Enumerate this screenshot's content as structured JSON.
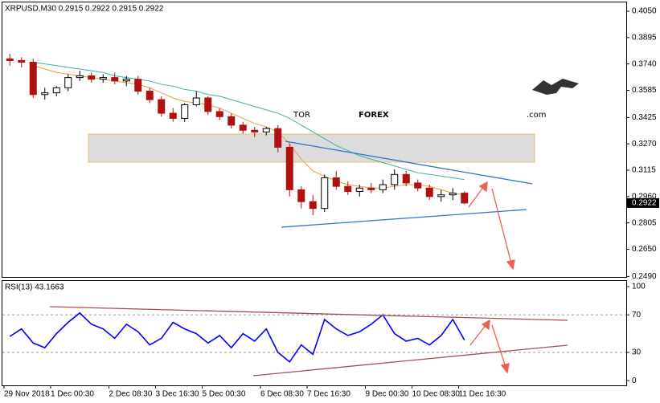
{
  "chart_data": [
    {
      "type": "candlestick",
      "title": "XRPUSD,M30 0.2915 0.2922 0.2915 0.2922",
      "up_color": "#000000",
      "down_color": "#b01010",
      "open": [
        0.377,
        0.376,
        0.375,
        0.356,
        0.357,
        0.36,
        0.366,
        0.367,
        0.365,
        0.366,
        0.364,
        0.365,
        0.358,
        0.353,
        0.345,
        0.342,
        0.35,
        0.354,
        0.346,
        0.343,
        0.338,
        0.335,
        0.334,
        0.336,
        0.325,
        0.3,
        0.293,
        0.289,
        0.307,
        0.302,
        0.299,
        0.301,
        0.3,
        0.303,
        0.309,
        0.304,
        0.301,
        0.296,
        0.297,
        0.298
      ],
      "high": [
        0.38,
        0.378,
        0.377,
        0.36,
        0.361,
        0.368,
        0.37,
        0.369,
        0.368,
        0.369,
        0.367,
        0.367,
        0.36,
        0.355,
        0.348,
        0.351,
        0.358,
        0.355,
        0.348,
        0.345,
        0.34,
        0.337,
        0.337,
        0.338,
        0.327,
        0.302,
        0.297,
        0.309,
        0.311,
        0.305,
        0.303,
        0.304,
        0.306,
        0.312,
        0.311,
        0.306,
        0.303,
        0.3,
        0.301,
        0.299
      ],
      "low": [
        0.373,
        0.372,
        0.354,
        0.353,
        0.355,
        0.358,
        0.364,
        0.363,
        0.363,
        0.362,
        0.361,
        0.356,
        0.351,
        0.343,
        0.34,
        0.34,
        0.349,
        0.344,
        0.341,
        0.336,
        0.333,
        0.331,
        0.332,
        0.322,
        0.296,
        0.289,
        0.285,
        0.287,
        0.3,
        0.297,
        0.296,
        0.298,
        0.298,
        0.3,
        0.302,
        0.299,
        0.294,
        0.293,
        0.294,
        0.2915
      ],
      "close": [
        0.376,
        0.375,
        0.356,
        0.357,
        0.36,
        0.366,
        0.367,
        0.365,
        0.366,
        0.364,
        0.365,
        0.358,
        0.353,
        0.345,
        0.342,
        0.35,
        0.354,
        0.346,
        0.343,
        0.338,
        0.335,
        0.334,
        0.336,
        0.325,
        0.3,
        0.293,
        0.289,
        0.307,
        0.302,
        0.299,
        0.301,
        0.3,
        0.303,
        0.309,
        0.304,
        0.301,
        0.296,
        0.297,
        0.298,
        0.2922
      ],
      "series": [
        {
          "color": "#e8a040",
          "values": [
            null,
            null,
            0.373,
            0.371,
            0.369,
            0.368,
            0.367,
            0.366,
            0.365,
            0.364,
            0.363,
            0.362,
            0.36,
            0.357,
            0.354,
            0.352,
            0.351,
            0.35,
            0.348,
            0.345,
            0.342,
            0.339,
            0.337,
            0.334,
            0.327,
            0.318,
            0.311,
            0.308,
            0.305,
            0.303,
            0.302,
            0.301,
            0.301,
            0.302,
            0.303,
            0.303,
            0.302,
            0.3,
            0.298,
            0.297
          ]
        },
        {
          "color": "#40b0a0",
          "values": [
            null,
            null,
            0.375,
            0.374,
            0.373,
            0.372,
            0.371,
            0.37,
            0.369,
            0.367,
            0.366,
            0.365,
            0.364,
            0.362,
            0.361,
            0.359,
            0.358,
            0.356,
            0.355,
            0.353,
            0.351,
            0.349,
            0.347,
            0.345,
            0.342,
            0.338,
            0.334,
            0.33,
            0.326,
            0.323,
            0.32,
            0.318,
            0.316,
            0.314,
            0.312,
            0.31,
            0.309,
            0.308,
            0.307,
            0.306
          ]
        }
      ],
      "last_price": 0.2922,
      "ylim": [
        0.2487,
        0.4102
      ],
      "yticks": [
        {
          "value": 0.405,
          "label": "0.4050"
        },
        0.3895,
        {
          "value": 0.374,
          "label": "0.3740"
        },
        0.3585,
        0.3425,
        {
          "value": 0.327,
          "label": "0.3270"
        },
        0.3115,
        {
          "value": 0.296,
          "label": "0.2960"
        },
        0.2805,
        {
          "value": 0.265,
          "label": "0.2650"
        },
        {
          "value": 0.249,
          "label": "0.2490"
        }
      ]
    },
    {
      "type": "line",
      "title": "RSI(13) 43.1663",
      "color": "#0000ff",
      "categories": [
        "29 Nov 2018",
        null,
        null,
        null,
        "1 Dec 00:30",
        null,
        null,
        null,
        null,
        "2 Dec 08:30",
        null,
        null,
        null,
        "3 Dec 16:30",
        null,
        null,
        null,
        "5 Dec 00:30",
        null,
        null,
        null,
        null,
        "6 Dec 08:30",
        null,
        null,
        null,
        "7 Dec 16:30",
        null,
        null,
        null,
        null,
        "9 Dec 00:30",
        null,
        null,
        null,
        "10 Dec 08:30",
        null,
        null,
        null,
        "11 Dec 16:30"
      ],
      "values": [
        47,
        55,
        40,
        35,
        50,
        62,
        72,
        60,
        55,
        45,
        60,
        52,
        38,
        45,
        62,
        55,
        50,
        40,
        48,
        35,
        50,
        42,
        55,
        30,
        20,
        38,
        28,
        65,
        55,
        48,
        52,
        60,
        70,
        50,
        42,
        45,
        38,
        48,
        65,
        43.1663
      ],
      "ylim": [
        -5,
        106
      ],
      "yticks": [
        100,
        70,
        30,
        0
      ],
      "grid_ticks": [
        70,
        30
      ]
    }
  ],
  "logo": {
    "part1": "TOR",
    "part2": "FOREX",
    "part3": ".com"
  }
}
